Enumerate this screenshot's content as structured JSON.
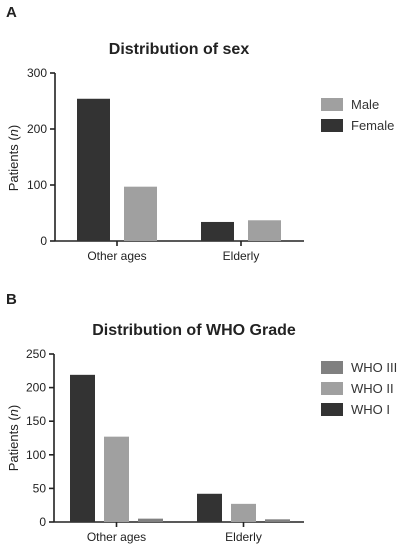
{
  "chart_data": [
    {
      "panel": "A",
      "type": "bar",
      "title": "Distribution of sex",
      "xlabel": "",
      "ylabel_prefix": "Patients (",
      "ylabel_var": "n",
      "ylabel_suffix": ")",
      "categories": [
        "Other ages",
        "Elderly"
      ],
      "ylim": [
        0,
        300
      ],
      "yticks": [
        0,
        100,
        200,
        300
      ],
      "series": [
        {
          "name": "Female",
          "color": "#333333",
          "values": [
            254,
            34
          ]
        },
        {
          "name": "Male",
          "color": "#a0a0a0",
          "values": [
            97,
            37
          ]
        }
      ],
      "legend_order": [
        "Male",
        "Female"
      ],
      "legend": "right",
      "grid": false
    },
    {
      "panel": "B",
      "type": "bar",
      "title": "Distribution of WHO Grade",
      "xlabel": "",
      "ylabel_prefix": "Patients (",
      "ylabel_var": "n",
      "ylabel_suffix": ")",
      "categories": [
        "Other ages",
        "Elderly"
      ],
      "ylim": [
        0,
        250
      ],
      "yticks": [
        0,
        50,
        100,
        150,
        200,
        250
      ],
      "series": [
        {
          "name": "WHO I",
          "color": "#333333",
          "values": [
            219,
            42
          ]
        },
        {
          "name": "WHO II",
          "color": "#a0a0a0",
          "values": [
            127,
            27
          ]
        },
        {
          "name": "WHO III",
          "color": "#808080",
          "values": [
            5,
            4
          ]
        }
      ],
      "legend_order": [
        "WHO III",
        "WHO II",
        "WHO I"
      ],
      "legend": "right",
      "grid": false
    }
  ]
}
